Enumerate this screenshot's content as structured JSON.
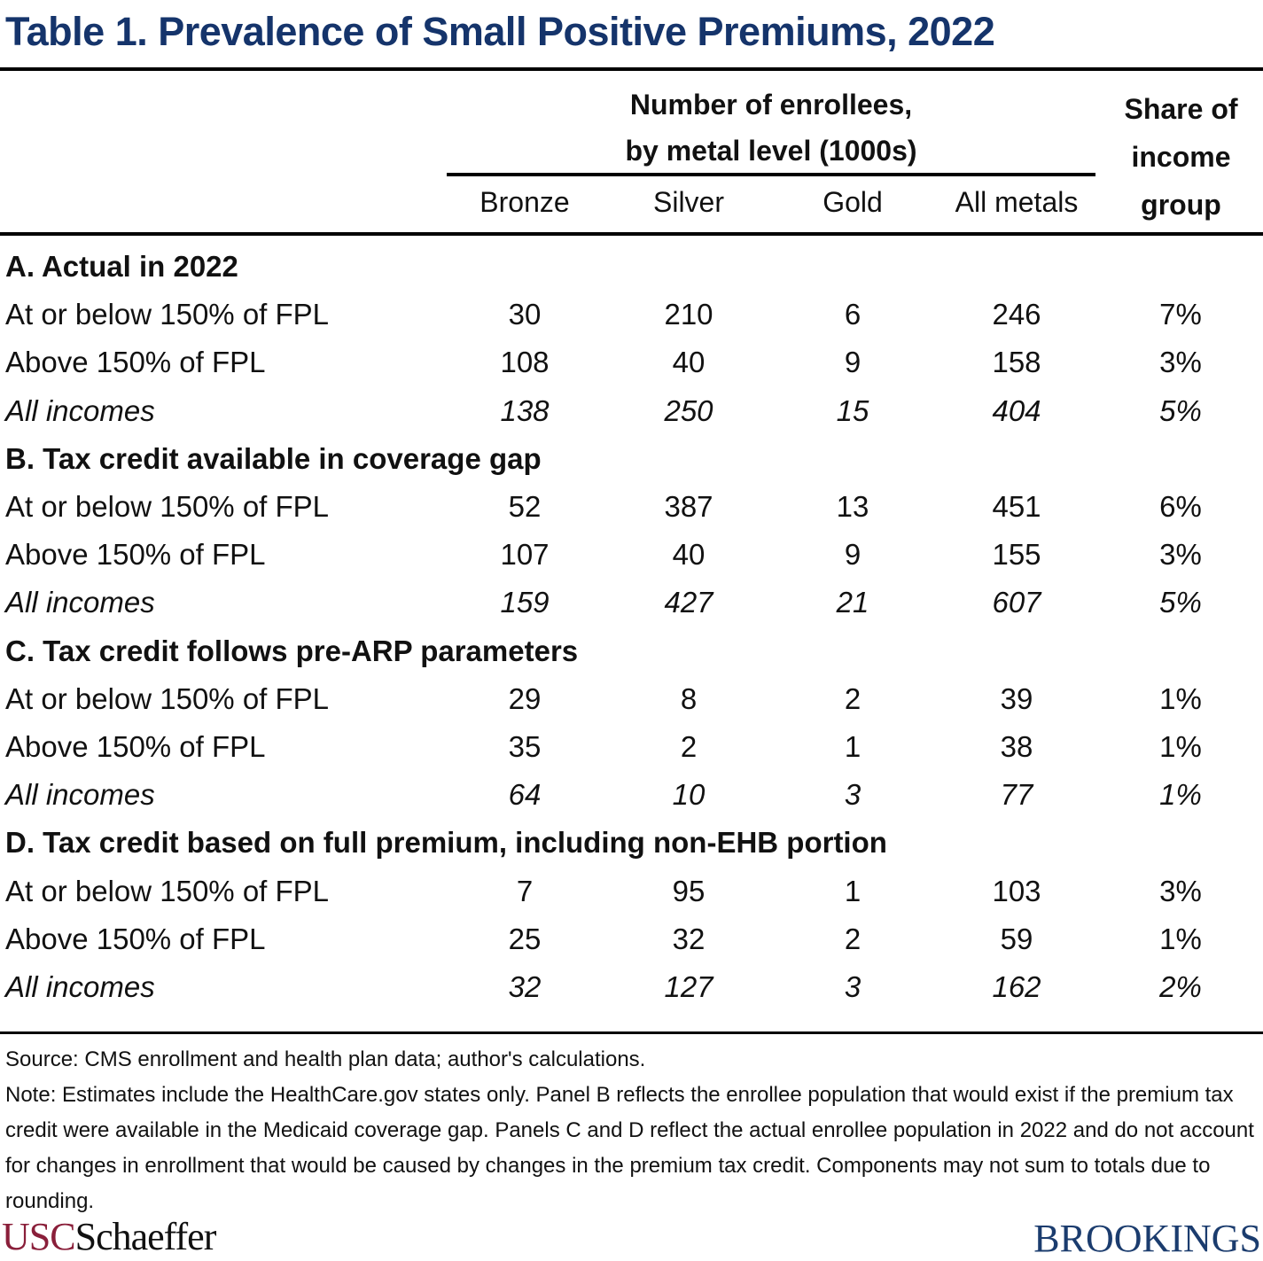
{
  "title": "Table 1. Prevalence of Small Positive Premiums, 2022",
  "header": {
    "group_line1": "Number of enrollees,",
    "group_line2": "by metal level (1000s)",
    "share_line1": "Share of",
    "share_line2": "income",
    "share_line3": "group",
    "columns": [
      "Bronze",
      "Silver",
      "Gold",
      "All metals"
    ]
  },
  "panels": [
    {
      "title": "A. Actual in 2022",
      "rows": [
        {
          "label": "At or below 150% of FPL",
          "values": [
            "30",
            "210",
            "6",
            "246",
            "7%"
          ]
        },
        {
          "label": "Above 150% of FPL",
          "values": [
            "108",
            "40",
            "9",
            "158",
            "3%"
          ]
        },
        {
          "label": "All incomes",
          "values": [
            "138",
            "250",
            "15",
            "404",
            "5%"
          ]
        }
      ]
    },
    {
      "title": "B. Tax credit available in coverage gap",
      "rows": [
        {
          "label": "At or below 150% of FPL",
          "values": [
            "52",
            "387",
            "13",
            "451",
            "6%"
          ]
        },
        {
          "label": "Above 150% of FPL",
          "values": [
            "107",
            "40",
            "9",
            "155",
            "3%"
          ]
        },
        {
          "label": "All incomes",
          "values": [
            "159",
            "427",
            "21",
            "607",
            "5%"
          ]
        }
      ]
    },
    {
      "title": "C. Tax credit follows pre-ARP parameters",
      "rows": [
        {
          "label": "At or below 150% of FPL",
          "values": [
            "29",
            "8",
            "2",
            "39",
            "1%"
          ]
        },
        {
          "label": "Above 150% of FPL",
          "values": [
            "35",
            "2",
            "1",
            "38",
            "1%"
          ]
        },
        {
          "label": "All incomes",
          "values": [
            "64",
            "10",
            "3",
            "77",
            "1%"
          ]
        }
      ]
    },
    {
      "title": "D. Tax credit based on full premium, including non-EHB portion",
      "rows": [
        {
          "label": "At or below 150% of FPL",
          "values": [
            "7",
            "95",
            "1",
            "103",
            "3%"
          ]
        },
        {
          "label": "Above 150% of FPL",
          "values": [
            "25",
            "32",
            "2",
            "59",
            "1%"
          ]
        },
        {
          "label": "All incomes",
          "values": [
            "32",
            "127",
            "3",
            "162",
            "2%"
          ]
        }
      ]
    }
  ],
  "notes": {
    "source": "Source: CMS enrollment and health plan data; author's calculations.",
    "note": "Note: Estimates include the HealthCare.gov states only. Panel B reflects the enrollee population that would exist if the premium tax credit were available in the Medicaid coverage gap. Panels C and D reflect the actual enrollee population in 2022 and do not account for changes in enrollment that would be caused by changes in the premium tax credit. Components may not sum to totals due to rounding."
  },
  "logos": {
    "left_part1": "USC",
    "left_part2": "Schaeffer",
    "right": "BROOKINGS"
  },
  "colors": {
    "title": "#15346b",
    "usc": "#8a1f3a",
    "brookings": "#1b3c6e"
  }
}
